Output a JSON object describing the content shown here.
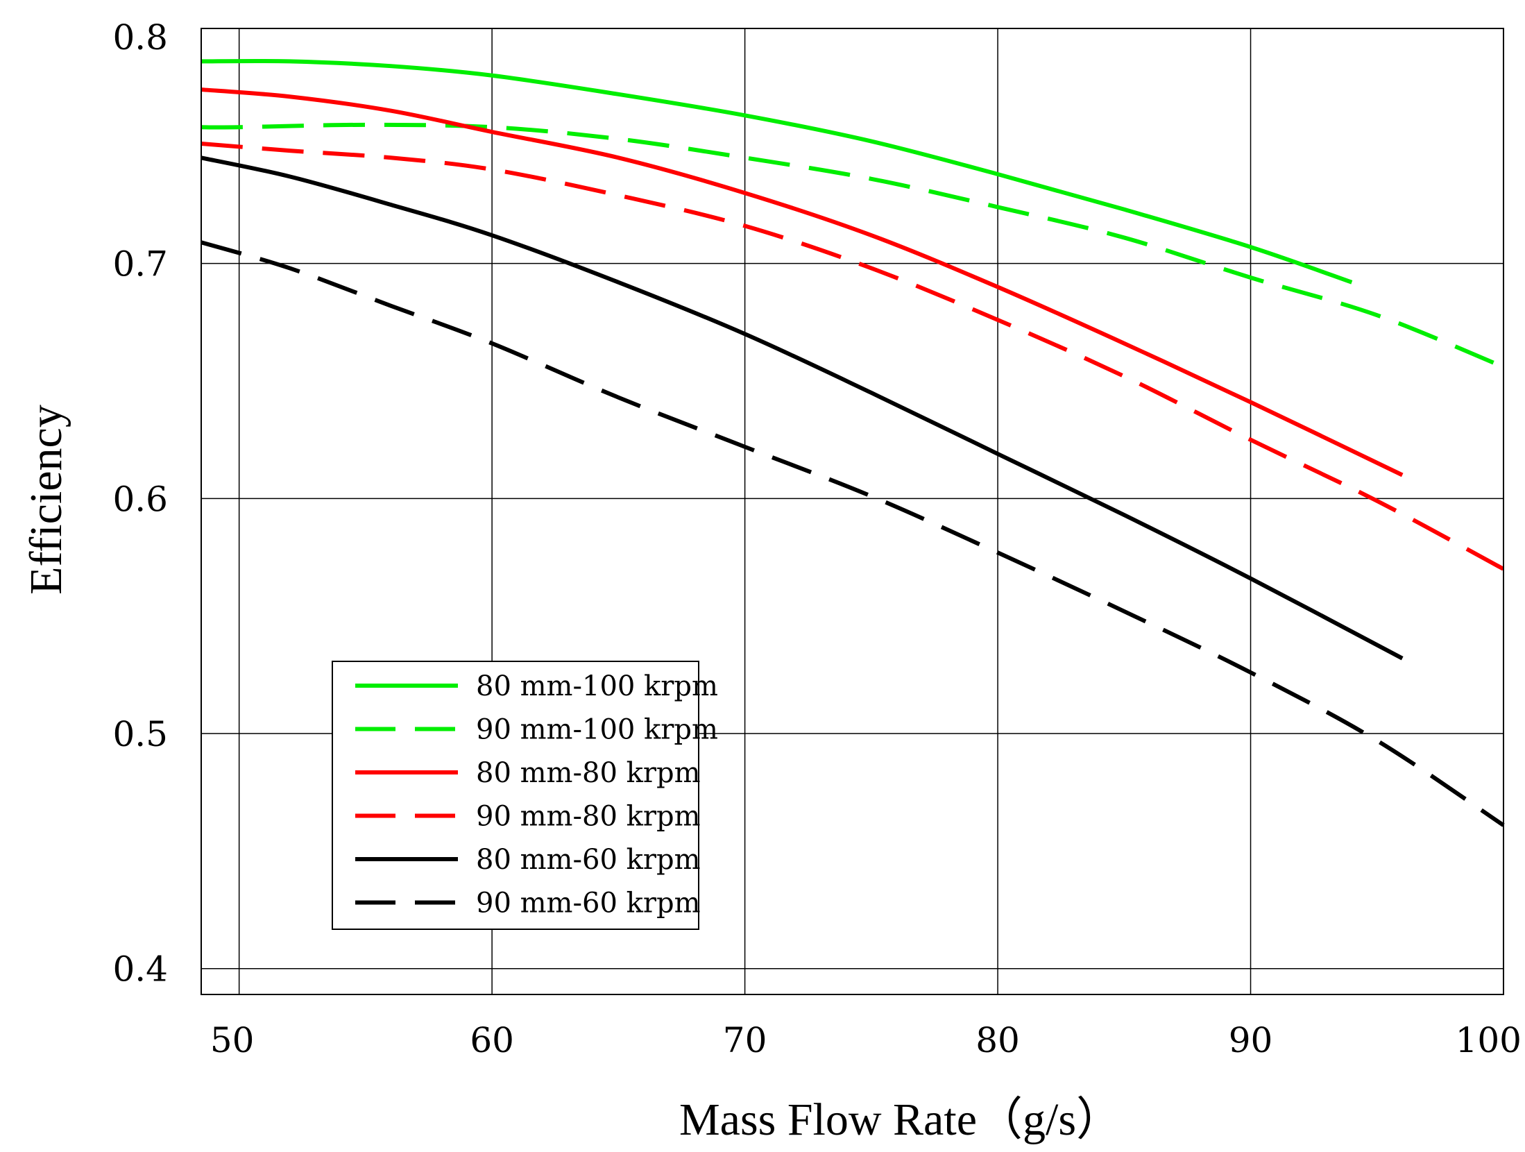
{
  "chart_data": {
    "type": "line",
    "title": "",
    "xlabel": "Mass Flow Rate（g/s）",
    "ylabel": "Efficiency",
    "xlim": [
      48.5,
      100
    ],
    "ylim": [
      0.389,
      0.8
    ],
    "grid": true,
    "legend_position": "lower-left",
    "x_ticks": [
      50,
      60,
      70,
      80,
      90,
      100
    ],
    "x_tick_labels": [
      "50",
      "60",
      "70",
      "80",
      "90",
      "100"
    ],
    "y_ticks": [
      0.4,
      0.5,
      0.6,
      0.7,
      0.8
    ],
    "y_tick_labels": [
      "0.4",
      "0.5",
      "0.6",
      "0.7",
      "0.8"
    ],
    "series": [
      {
        "name": "80 mm-100 krpm",
        "color": "#00ee00",
        "style": "solid",
        "x": [
          48.5,
          52,
          56,
          60,
          65,
          70,
          75,
          80,
          85,
          90,
          94
        ],
        "y": [
          0.786,
          0.786,
          0.784,
          0.78,
          0.772,
          0.763,
          0.752,
          0.738,
          0.723,
          0.707,
          0.692
        ]
      },
      {
        "name": "90 mm-100 krpm",
        "color": "#00ee00",
        "style": "dashed",
        "x": [
          48.5,
          50,
          55,
          60,
          65,
          70,
          75,
          80,
          85,
          90,
          95,
          100
        ],
        "y": [
          0.758,
          0.758,
          0.759,
          0.758,
          0.753,
          0.745,
          0.736,
          0.724,
          0.711,
          0.694,
          0.678,
          0.656
        ]
      },
      {
        "name": "80 mm-80 krpm",
        "color": "#ff0000",
        "style": "solid",
        "x": [
          48.5,
          52,
          56,
          60,
          65,
          70,
          75,
          80,
          85,
          90,
          96
        ],
        "y": [
          0.774,
          0.771,
          0.765,
          0.756,
          0.745,
          0.73,
          0.712,
          0.69,
          0.666,
          0.641,
          0.61
        ]
      },
      {
        "name": "90 mm-80 krpm",
        "color": "#ff0000",
        "style": "dashed",
        "x": [
          48.5,
          52,
          56,
          60,
          65,
          70,
          75,
          80,
          85,
          90,
          95,
          100
        ],
        "y": [
          0.751,
          0.748,
          0.745,
          0.74,
          0.729,
          0.716,
          0.698,
          0.676,
          0.652,
          0.625,
          0.599,
          0.57
        ]
      },
      {
        "name": "80 mm-60 krpm",
        "color": "#000000",
        "style": "solid",
        "x": [
          48.5,
          52,
          56,
          60,
          65,
          70,
          75,
          80,
          85,
          90,
          96
        ],
        "y": [
          0.745,
          0.737,
          0.725,
          0.712,
          0.692,
          0.67,
          0.645,
          0.619,
          0.593,
          0.566,
          0.532
        ]
      },
      {
        "name": "90 mm-60 krpm",
        "color": "#000000",
        "style": "dashed",
        "x": [
          48.5,
          52,
          56,
          60,
          65,
          70,
          75,
          80,
          85,
          90,
          95,
          100
        ],
        "y": [
          0.709,
          0.698,
          0.682,
          0.666,
          0.643,
          0.622,
          0.601,
          0.577,
          0.552,
          0.526,
          0.497,
          0.461
        ]
      }
    ]
  }
}
